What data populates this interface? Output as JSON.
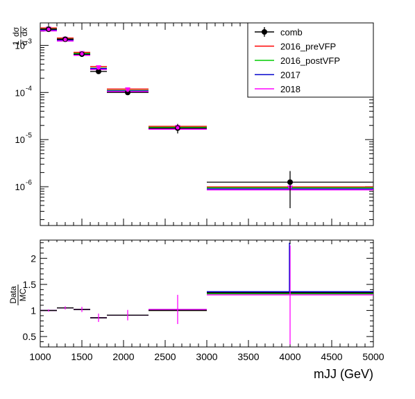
{
  "chart_data": [
    {
      "type": "scatter",
      "panel": "top",
      "xlabel": "",
      "ylabel_num": "1",
      "ylabel_den": "σ",
      "ylabel_dnum": "dσ",
      "ylabel_dden": "dx",
      "yscale": "log",
      "ylim": [
        1.5e-07,
        0.003
      ],
      "xlim": [
        1000,
        5000
      ],
      "y_ticks": [
        {
          "v": 1e-06,
          "base": "10",
          "exp": "-6"
        },
        {
          "v": 1e-05,
          "base": "10",
          "exp": "-5"
        },
        {
          "v": 0.0001,
          "base": "10",
          "exp": "-4"
        },
        {
          "v": 0.001,
          "base": "10",
          "exp": "-3"
        }
      ],
      "bins": [
        [
          1000,
          1200
        ],
        [
          1200,
          1400
        ],
        [
          1400,
          1600
        ],
        [
          1600,
          1800
        ],
        [
          1800,
          2300
        ],
        [
          2300,
          3000
        ],
        [
          3000,
          5000
        ]
      ],
      "legend_position": "top-right",
      "series": [
        {
          "name": "comb",
          "color": "#000000",
          "style": "point",
          "values": [
            0.0022,
            0.00135,
            0.00065,
            0.00028,
            0.0001,
            1.75e-05,
            1.25e-06
          ],
          "errors": [
            0.00012,
            6e-05,
            3e-05,
            2e-05,
            6e-06,
            4e-06,
            9e-07
          ]
        },
        {
          "name": "2016_preVFP",
          "color": "#ff0000",
          "style": "line",
          "values": [
            0.00218,
            0.00133,
            0.00066,
            0.00033,
            0.00011,
            1.78e-05,
            9.2e-07
          ]
        },
        {
          "name": "2016_postVFP",
          "color": "#00cc00",
          "style": "line",
          "values": [
            0.00218,
            0.00133,
            0.00066,
            0.00032,
            0.000108,
            1.78e-05,
            9.3e-07
          ]
        },
        {
          "name": "2017",
          "color": "#0000cc",
          "style": "line",
          "values": [
            0.00218,
            0.00133,
            0.00066,
            0.00033,
            0.00011,
            1.78e-05,
            9.2e-07
          ]
        },
        {
          "name": "2018",
          "color": "#ff00ff",
          "style": "line",
          "values": [
            0.00218,
            0.00133,
            0.00066,
            0.00033,
            0.000112,
            1.78e-05,
            9.2e-07
          ]
        }
      ]
    },
    {
      "type": "scatter",
      "panel": "bottom",
      "xlabel": "mJJ (GeV)",
      "ylabel_num": "Data",
      "ylabel_den": "MC",
      "ylim": [
        0.3,
        2.35
      ],
      "xlim": [
        1000,
        5000
      ],
      "y_ticks": [
        "0.5",
        "1",
        "1.5",
        "2"
      ],
      "x_ticks": [
        "1000",
        "1500",
        "2000",
        "2500",
        "3000",
        "3500",
        "4000",
        "4500",
        "5000"
      ],
      "bins": [
        [
          1000,
          1200
        ],
        [
          1200,
          1400
        ],
        [
          1400,
          1600
        ],
        [
          1600,
          1800
        ],
        [
          1800,
          2300
        ],
        [
          2300,
          3000
        ],
        [
          3000,
          5000
        ]
      ],
      "series": [
        {
          "name": "2016_preVFP",
          "color": "#ff0000",
          "values": [
            1.0,
            1.05,
            1.02,
            0.86,
            0.91,
            1.0,
            1.34
          ],
          "errors": [
            0.02,
            0.03,
            0.05,
            0.08,
            0.1,
            0.28,
            0.95
          ]
        },
        {
          "name": "2016_postVFP",
          "color": "#00cc00",
          "values": [
            1.0,
            1.05,
            1.02,
            0.86,
            0.91,
            1.0,
            1.32
          ],
          "errors": [
            0.02,
            0.03,
            0.05,
            0.08,
            0.1,
            0.28,
            0.95
          ]
        },
        {
          "name": "2017",
          "color": "#0000cc",
          "values": [
            1.0,
            1.05,
            1.02,
            0.86,
            0.91,
            1.02,
            1.36
          ],
          "errors": [
            0.02,
            0.03,
            0.05,
            0.08,
            0.1,
            0.28,
            0.95
          ]
        },
        {
          "name": "2018",
          "color": "#ff00ff",
          "values": [
            1.0,
            1.05,
            1.02,
            0.86,
            0.91,
            1.02,
            1.3
          ],
          "errors": [
            0.02,
            0.03,
            0.05,
            0.08,
            0.1,
            0.28,
            0.95
          ]
        },
        {
          "name": "comb",
          "color": "#000000",
          "values": [
            1.0,
            1.05,
            1.02,
            0.86,
            0.91,
            1.0,
            1.34
          ],
          "errors": [
            0.02,
            0.03,
            0.05,
            0.08,
            0.1,
            0.28,
            0.95
          ]
        }
      ]
    }
  ]
}
